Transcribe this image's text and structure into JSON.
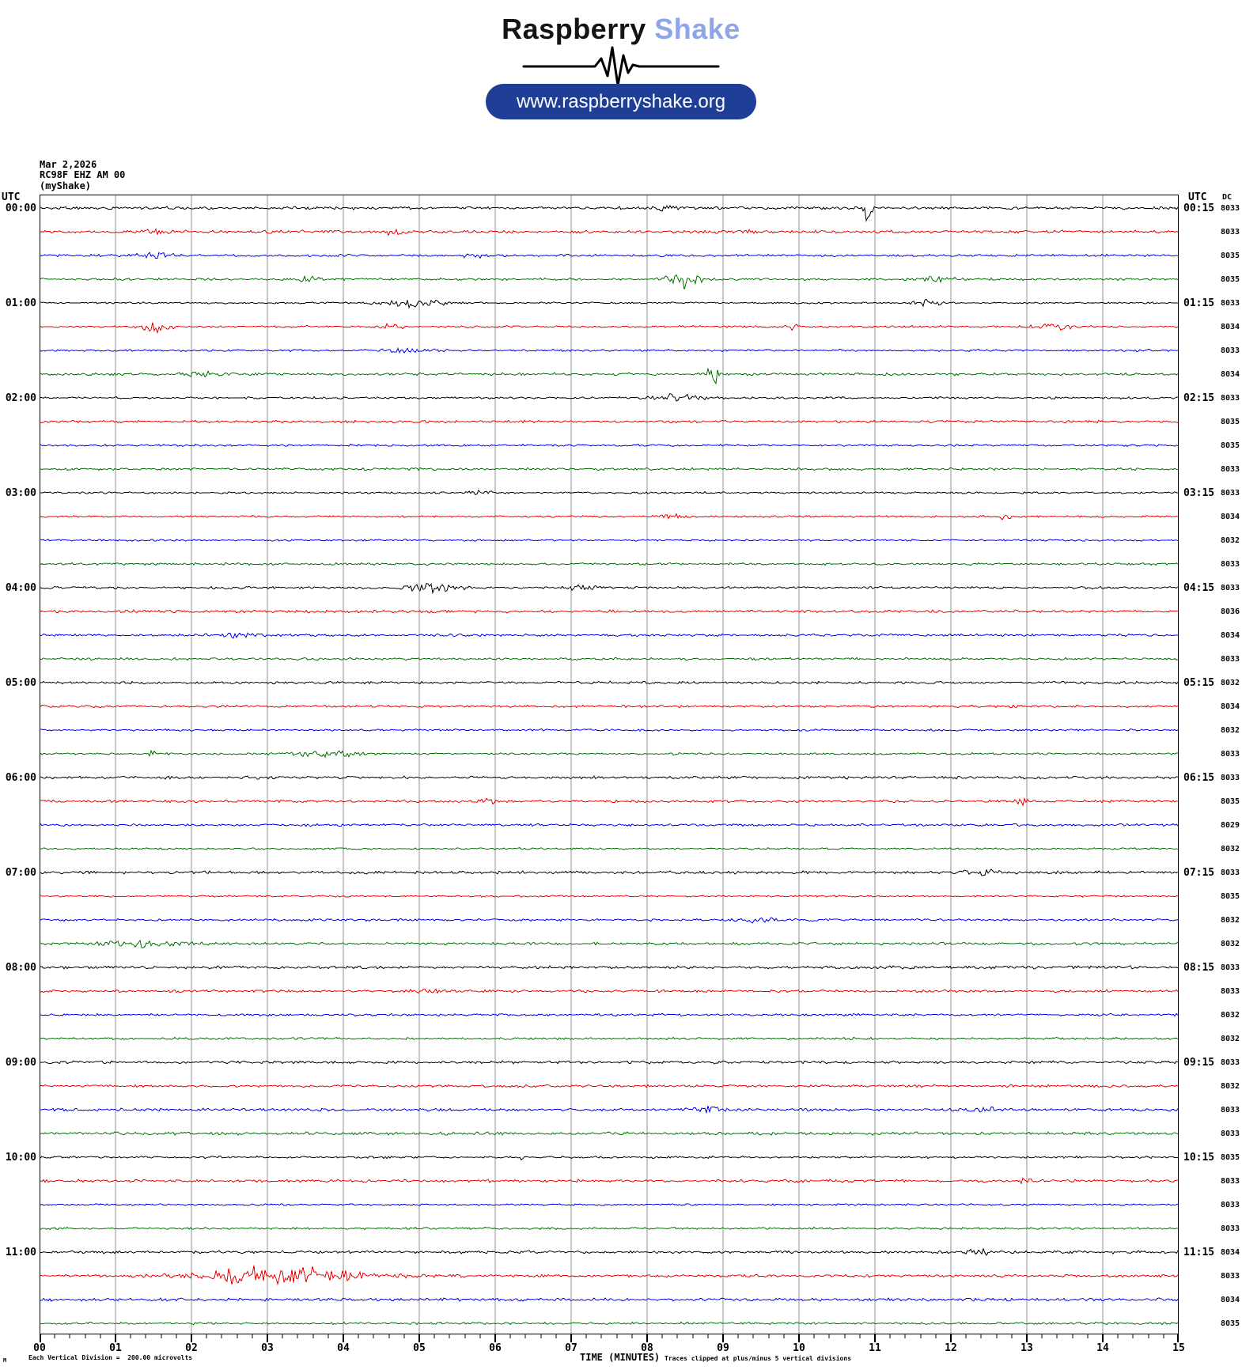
{
  "logo": {
    "brand_black": "Raspberry",
    "brand_blue": " Shake",
    "url_button": "www.raspberryshake.org",
    "pill_color": "#1f3e96",
    "brand_blue_color": "#8ea6e9"
  },
  "header": {
    "date": "Mar 2,2026",
    "station": "RC98F EHZ AM 00",
    "network": "(myShake)",
    "left_axis_title": "UTC",
    "right_axis_title": "UTC",
    "dc_header": "DC"
  },
  "footer": {
    "corner_glyph": "M",
    "division_note": "Each Vertical Division =  200.00 microvolts",
    "axis_title": "TIME (MINUTES)",
    "clip_note": "Traces clipped at plus/minus 5 vertical divisions"
  },
  "chart_data": {
    "type": "line",
    "subtype": "helicorder-seismogram",
    "title": "RC98F EHZ AM 00 (myShake) Mar 2,2026",
    "xlabel": "TIME (MINUTES)",
    "x_range_minutes": [
      0,
      15
    ],
    "x_tick_labels": [
      "00",
      "01",
      "02",
      "03",
      "04",
      "05",
      "06",
      "07",
      "08",
      "09",
      "10",
      "11",
      "12",
      "13",
      "14",
      "15"
    ],
    "minor_tick_step_minutes": 0.2,
    "grid": "vertical-every-minute",
    "grid_color": "#909090",
    "row_colors_cycle": [
      "#000000",
      "#ee0000",
      "#0000ee",
      "#007200"
    ],
    "minutes_per_row": 15,
    "rows": [
      {
        "left_label": "00:00",
        "right_label": "00:15",
        "dc": 8033,
        "color": "#000000",
        "events": [
          {
            "m": 10.9,
            "w": 0.05,
            "a": -12
          },
          {
            "m": 8.2,
            "w": 0.2,
            "a": 2.5
          }
        ]
      },
      {
        "dc": 8033,
        "color": "#ee0000",
        "events": [
          {
            "m": 1.5,
            "w": 0.2,
            "a": 2.5
          },
          {
            "m": 4.6,
            "w": 0.15,
            "a": 4.5
          },
          {
            "m": 9.2,
            "w": 0.2,
            "a": 2.5
          }
        ]
      },
      {
        "dc": 8035,
        "color": "#0000ee",
        "events": [
          {
            "m": 1.45,
            "w": 0.3,
            "a": 3.5
          },
          {
            "m": 5.7,
            "w": 0.2,
            "a": 2.5
          }
        ]
      },
      {
        "dc": 8035,
        "color": "#007200",
        "events": [
          {
            "m": 3.5,
            "w": 0.2,
            "a": 3.5
          },
          {
            "m": 8.5,
            "w": 0.22,
            "a": 12
          },
          {
            "m": 11.8,
            "w": 0.25,
            "a": 3.5
          }
        ]
      },
      {
        "left_label": "01:00",
        "right_label": "01:15",
        "dc": 8033,
        "color": "#000000",
        "events": [
          {
            "m": 4.9,
            "w": 0.45,
            "a": 5
          },
          {
            "m": 11.7,
            "w": 0.2,
            "a": 4.5
          }
        ]
      },
      {
        "dc": 8034,
        "color": "#ee0000",
        "events": [
          {
            "m": 1.55,
            "w": 0.22,
            "a": 9
          },
          {
            "m": 4.6,
            "w": 0.15,
            "a": 3.5
          },
          {
            "m": 9.9,
            "w": 0.06,
            "a": 8
          },
          {
            "m": 13.4,
            "w": 0.3,
            "a": 3.5
          }
        ]
      },
      {
        "dc": 8033,
        "color": "#0000ee",
        "events": [
          {
            "m": 4.8,
            "w": 0.3,
            "a": 2.5
          }
        ]
      },
      {
        "dc": 8034,
        "color": "#007200",
        "events": [
          {
            "m": 2.1,
            "w": 0.3,
            "a": 3
          },
          {
            "m": 8.85,
            "w": 0.07,
            "a": 17
          }
        ]
      },
      {
        "left_label": "02:00",
        "right_label": "02:15",
        "dc": 8033,
        "color": "#000000",
        "events": [
          {
            "m": 8.4,
            "w": 0.35,
            "a": 5.5
          }
        ]
      },
      {
        "dc": 8035,
        "color": "#ee0000",
        "events": []
      },
      {
        "dc": 8035,
        "color": "#0000ee",
        "events": []
      },
      {
        "dc": 8033,
        "color": "#007200",
        "events": []
      },
      {
        "left_label": "03:00",
        "right_label": "03:15",
        "dc": 8033,
        "color": "#000000",
        "events": [
          {
            "m": 5.8,
            "w": 0.15,
            "a": 3.5
          }
        ]
      },
      {
        "dc": 8034,
        "color": "#ee0000",
        "events": [
          {
            "m": 8.4,
            "w": 0.2,
            "a": 3.5
          },
          {
            "m": 12.7,
            "w": 0.05,
            "a": 11
          }
        ]
      },
      {
        "dc": 8032,
        "color": "#0000ee",
        "events": []
      },
      {
        "dc": 8033,
        "color": "#007200",
        "events": []
      },
      {
        "left_label": "04:00",
        "right_label": "04:15",
        "dc": 8033,
        "color": "#000000",
        "events": [
          {
            "m": 5.2,
            "w": 0.35,
            "a": 6
          },
          {
            "m": 7.1,
            "w": 0.2,
            "a": 3.5
          }
        ]
      },
      {
        "dc": 8036,
        "color": "#ee0000",
        "events": []
      },
      {
        "dc": 8034,
        "color": "#0000ee",
        "events": [
          {
            "m": 2.6,
            "w": 0.3,
            "a": 2.5
          }
        ]
      },
      {
        "dc": 8033,
        "color": "#007200",
        "events": []
      },
      {
        "left_label": "05:00",
        "right_label": "05:15",
        "dc": 8032,
        "color": "#000000",
        "events": []
      },
      {
        "dc": 8034,
        "color": "#ee0000",
        "events": []
      },
      {
        "dc": 8032,
        "color": "#0000ee",
        "events": []
      },
      {
        "dc": 8033,
        "color": "#007200",
        "events": [
          {
            "m": 1.45,
            "w": 0.05,
            "a": 10
          },
          {
            "m": 3.8,
            "w": 0.5,
            "a": 3.5
          }
        ]
      },
      {
        "left_label": "06:00",
        "right_label": "06:15",
        "dc": 8033,
        "color": "#000000",
        "events": []
      },
      {
        "dc": 8035,
        "color": "#ee0000",
        "events": [
          {
            "m": 5.9,
            "w": 0.08,
            "a": 3.5
          },
          {
            "m": 12.9,
            "w": 0.1,
            "a": 4.5
          }
        ]
      },
      {
        "dc": 8029,
        "color": "#0000ee",
        "events": []
      },
      {
        "dc": 8032,
        "color": "#007200",
        "events": []
      },
      {
        "left_label": "07:00",
        "right_label": "07:15",
        "dc": 8033,
        "color": "#000000",
        "events": [
          {
            "m": 12.4,
            "w": 0.25,
            "a": 3.5
          }
        ]
      },
      {
        "dc": 8035,
        "color": "#ee0000",
        "events": []
      },
      {
        "dc": 8032,
        "color": "#0000ee",
        "events": [
          {
            "m": 9.4,
            "w": 0.3,
            "a": 3.5
          }
        ]
      },
      {
        "dc": 8032,
        "color": "#007200",
        "events": [
          {
            "m": 1.4,
            "w": 0.55,
            "a": 4.5
          }
        ]
      },
      {
        "left_label": "08:00",
        "right_label": "08:15",
        "dc": 8033,
        "color": "#000000",
        "events": []
      },
      {
        "dc": 8033,
        "color": "#ee0000",
        "events": [
          {
            "m": 5.0,
            "w": 0.2,
            "a": 2.5
          }
        ]
      },
      {
        "dc": 8032,
        "color": "#0000ee",
        "events": []
      },
      {
        "dc": 8032,
        "color": "#007200",
        "events": []
      },
      {
        "left_label": "09:00",
        "right_label": "09:15",
        "dc": 8033,
        "color": "#000000",
        "events": []
      },
      {
        "dc": 8032,
        "color": "#ee0000",
        "events": []
      },
      {
        "dc": 8033,
        "color": "#0000ee",
        "events": [
          {
            "m": 8.75,
            "w": 0.2,
            "a": 4.5
          },
          {
            "m": 12.4,
            "w": 0.2,
            "a": 3.5
          }
        ]
      },
      {
        "dc": 8033,
        "color": "#007200",
        "events": []
      },
      {
        "left_label": "10:00",
        "right_label": "10:15",
        "dc": 8035,
        "color": "#000000",
        "events": [
          {
            "m": 6.35,
            "w": 0.04,
            "a": 7
          }
        ]
      },
      {
        "dc": 8033,
        "color": "#ee0000",
        "events": [
          {
            "m": 12.95,
            "w": 0.06,
            "a": 11
          }
        ]
      },
      {
        "dc": 8033,
        "color": "#0000ee",
        "events": []
      },
      {
        "dc": 8033,
        "color": "#007200",
        "events": []
      },
      {
        "left_label": "11:00",
        "right_label": "11:15",
        "dc": 8034,
        "color": "#000000",
        "events": [
          {
            "m": 12.4,
            "w": 0.2,
            "a": 3
          }
        ]
      },
      {
        "dc": 8033,
        "color": "#ee0000",
        "events": [
          {
            "m": 3.2,
            "w": 1.0,
            "a": 12
          },
          {
            "m": 2.5,
            "w": 0.3,
            "a": 5
          }
        ]
      },
      {
        "dc": 8034,
        "color": "#0000ee",
        "events": []
      },
      {
        "dc": 8035,
        "color": "#007200",
        "events": []
      }
    ]
  }
}
